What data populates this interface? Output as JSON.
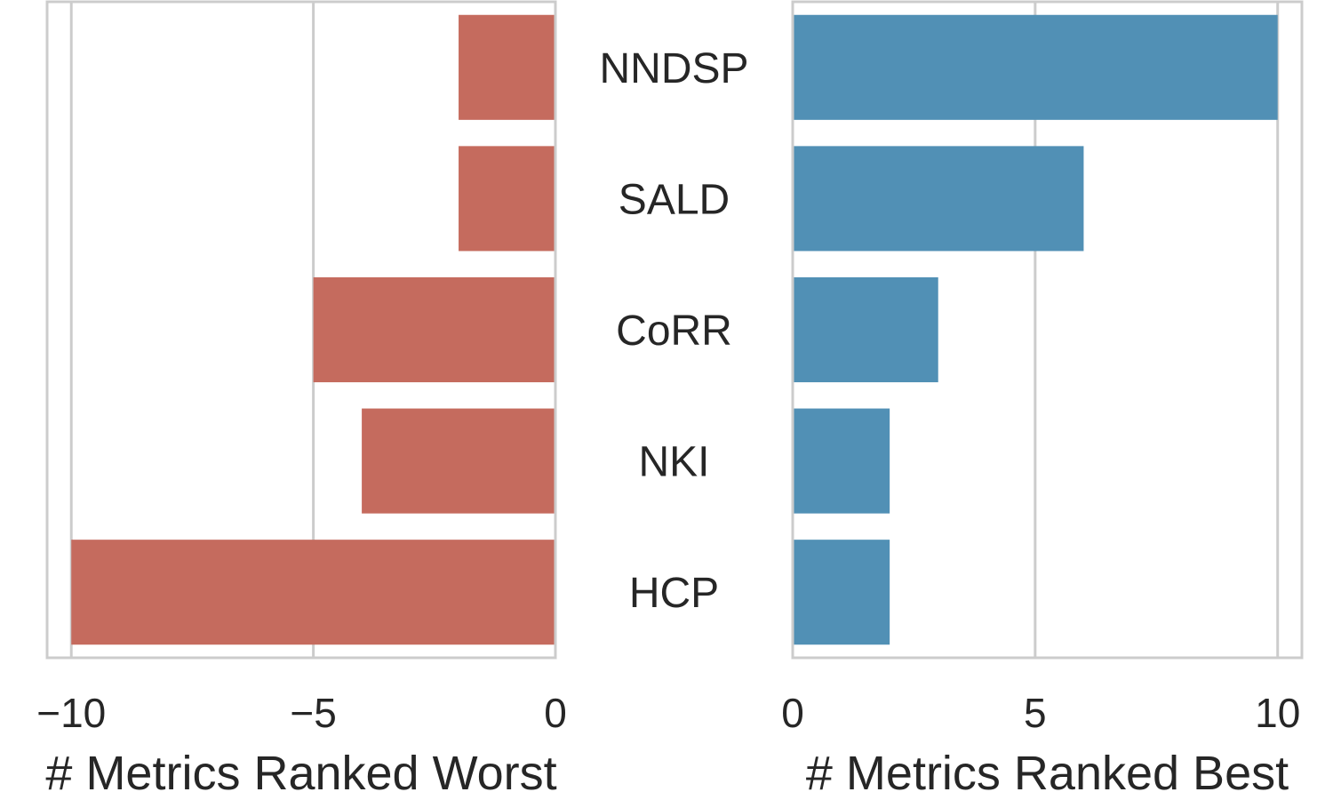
{
  "chart_data": [
    {
      "type": "bar",
      "orientation": "horizontal",
      "categories": [
        "NNDSP",
        "SALD",
        "CoRR",
        "NKI",
        "HCP"
      ],
      "values": [
        -2,
        -2,
        -5,
        -4,
        -10
      ],
      "xlabel": "# Metrics Ranked Worst",
      "xlim": [
        -10.5,
        0
      ],
      "xticks": [
        -10,
        -5,
        0
      ],
      "xtick_labels": [
        "−10",
        "−5",
        "0"
      ],
      "grid": true,
      "color": "#c56b5e"
    },
    {
      "type": "bar",
      "orientation": "horizontal",
      "categories": [
        "NNDSP",
        "SALD",
        "CoRR",
        "NKI",
        "HCP"
      ],
      "values": [
        10,
        6,
        3,
        2,
        2
      ],
      "xlabel": "# Metrics Ranked Best",
      "xlim": [
        0,
        10.5
      ],
      "xticks": [
        0,
        5,
        10
      ],
      "xtick_labels": [
        "0",
        "5",
        "10"
      ],
      "grid": true,
      "color": "#5190b5"
    }
  ],
  "colors": {
    "grid": "#cccccc",
    "spine": "#cccccc",
    "text": "#262626"
  }
}
